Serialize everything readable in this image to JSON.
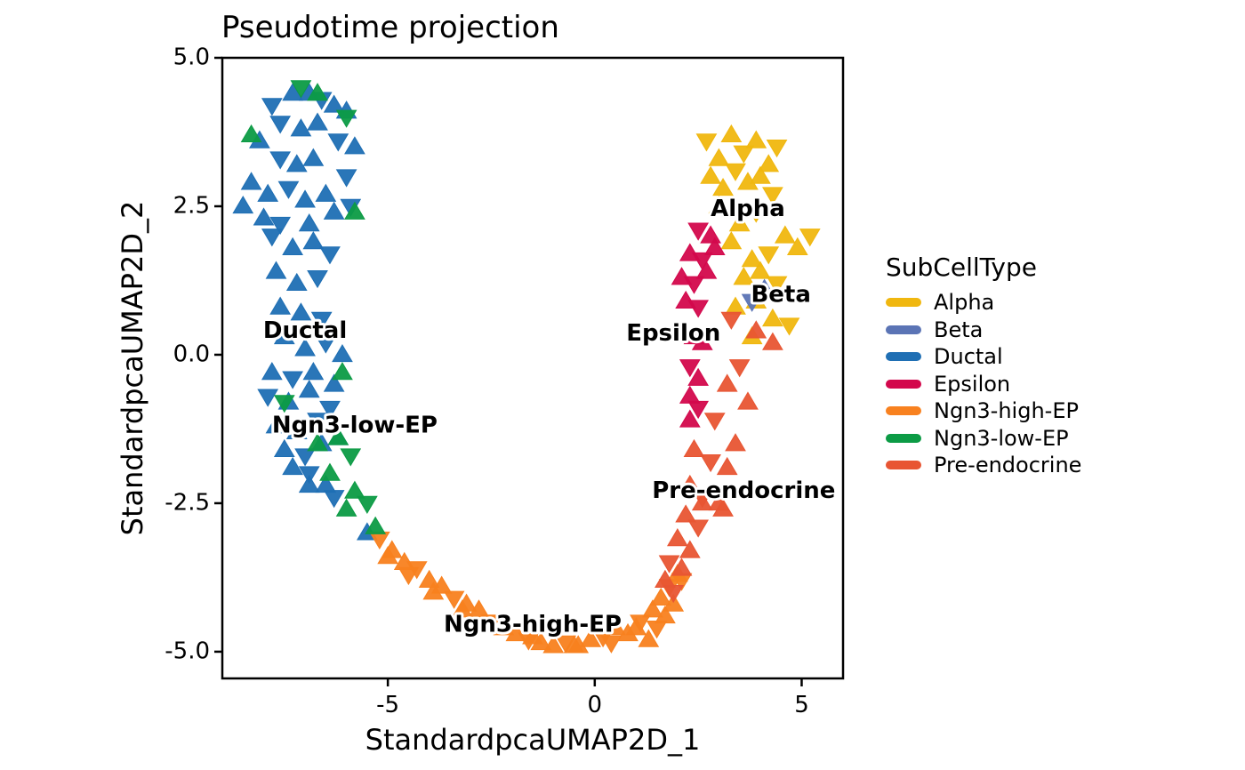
{
  "chart_data": {
    "type": "scatter",
    "title": "Pseudotime projection",
    "xlabel": "StandardpcaUMAP2D_1",
    "ylabel": "StandardpcaUMAP2D_2",
    "xlim": [
      -9.0,
      6.0
    ],
    "ylim": [
      -5.45,
      5.0
    ],
    "x_ticks": [
      -5,
      0,
      5
    ],
    "x_tick_labels": [
      "-5",
      "0",
      "5"
    ],
    "y_ticks": [
      5.0,
      2.5,
      0.0,
      -2.5,
      -5.0
    ],
    "y_tick_labels": [
      "5.0",
      "2.5",
      "0.0",
      "-2.5",
      "-5.0"
    ],
    "grid": false,
    "legend_position": "right",
    "legend_title": "SubCellType",
    "marker": "triangle",
    "series": [
      {
        "name": "Alpha",
        "color": "#F0B70F",
        "label": "Alpha",
        "label_at": [
          3.7,
          2.45
        ],
        "x": [
          2.7,
          3.0,
          3.3,
          3.6,
          3.9,
          4.2,
          4.4,
          2.8,
          3.1,
          3.4,
          3.7,
          4.0,
          4.3,
          3.0,
          3.5,
          3.9,
          4.6,
          4.9,
          5.2,
          3.3,
          3.8,
          4.2,
          3.6,
          4.0,
          4.4,
          3.9,
          4.3,
          4.7,
          3.4,
          3.8
        ],
        "y": [
          3.6,
          3.3,
          3.7,
          3.4,
          3.6,
          3.2,
          3.5,
          3.0,
          2.8,
          3.1,
          2.9,
          3.0,
          2.7,
          2.5,
          2.2,
          2.4,
          2.0,
          1.8,
          2.0,
          1.9,
          1.6,
          1.7,
          1.3,
          1.4,
          1.2,
          0.9,
          0.6,
          0.5,
          0.8,
          0.3
        ]
      },
      {
        "name": "Beta",
        "color": "#5B74B5",
        "label": "Beta",
        "label_at": [
          4.5,
          1.0
        ],
        "x": [
          3.8,
          4.1
        ],
        "y": [
          0.9,
          1.1
        ]
      },
      {
        "name": "Ductal",
        "color": "#1F6FB4",
        "label": "Ductal",
        "label_at": [
          -7.0,
          0.4
        ],
        "x": [
          -7.8,
          -7.3,
          -6.9,
          -6.6,
          -6.3,
          -6.0,
          -7.6,
          -7.1,
          -6.7,
          -6.2,
          -5.8,
          -8.1,
          -7.6,
          -7.2,
          -6.8,
          -6.0,
          -8.3,
          -7.9,
          -7.4,
          -7.0,
          -6.5,
          -5.9,
          -8.5,
          -8.0,
          -7.6,
          -6.9,
          -6.3,
          -7.8,
          -7.3,
          -6.8,
          -6.4,
          -7.7,
          -7.2,
          -6.7,
          -7.6,
          -7.1,
          -6.6,
          -7.5,
          -7.0,
          -6.5,
          -6.1,
          -7.8,
          -7.3,
          -6.8,
          -6.3,
          -7.9,
          -7.4,
          -6.9,
          -6.4,
          -7.7,
          -7.2,
          -6.7,
          -6.2,
          -7.5,
          -7.0,
          -6.6,
          -7.3,
          -6.9,
          -6.5,
          -6.9,
          -6.3,
          -5.5
        ],
        "y": [
          4.2,
          4.4,
          4.4,
          4.3,
          4.2,
          4.1,
          3.9,
          3.8,
          3.9,
          3.6,
          3.5,
          3.6,
          3.3,
          3.2,
          3.3,
          3.0,
          2.9,
          2.7,
          2.8,
          2.6,
          2.7,
          2.5,
          2.5,
          2.3,
          2.2,
          2.2,
          2.4,
          2.0,
          1.8,
          1.9,
          1.7,
          1.4,
          1.2,
          1.3,
          0.8,
          0.7,
          0.6,
          0.3,
          0.1,
          0.2,
          0.0,
          -0.3,
          -0.4,
          -0.3,
          -0.5,
          -0.7,
          -0.8,
          -0.6,
          -0.9,
          -1.2,
          -1.3,
          -1.1,
          -1.4,
          -1.6,
          -1.7,
          -1.5,
          -1.9,
          -2.0,
          -2.2,
          -2.2,
          -2.4,
          -3.0
        ]
      },
      {
        "name": "Epsilon",
        "color": "#D3084C",
        "label": "Epsilon",
        "label_at": [
          1.9,
          0.35
        ],
        "x": [
          2.5,
          2.8,
          2.3,
          2.6,
          2.9,
          2.1,
          2.4,
          2.7,
          2.2,
          2.5,
          2.4,
          2.6,
          2.3,
          2.5,
          2.3,
          2.5,
          2.3
        ],
        "y": [
          2.1,
          2.0,
          1.7,
          1.6,
          1.8,
          1.3,
          1.2,
          1.4,
          0.9,
          0.8,
          0.3,
          0.2,
          -0.2,
          -0.4,
          -0.7,
          -0.9,
          -1.1
        ]
      },
      {
        "name": "Ngn3-high-EP",
        "color": "#F8811F",
        "label": "Ngn3-high-EP",
        "label_at": [
          -1.5,
          -4.55
        ],
        "x": [
          -5.2,
          -4.9,
          -4.6,
          -4.3,
          -4.0,
          -3.7,
          -3.4,
          -3.1,
          -2.8,
          -2.5,
          -2.2,
          -1.9,
          -1.6,
          -1.3,
          -1.0,
          -0.7,
          -0.4,
          -0.1,
          0.2,
          0.5,
          0.8,
          1.1,
          1.4,
          1.6,
          1.8,
          2.0,
          1.3,
          1.5,
          1.7,
          -5.0,
          -4.5,
          -3.9,
          -3.2,
          -2.5,
          -1.5,
          -0.5,
          0.4,
          1.0,
          1.9,
          2.1
        ],
        "y": [
          -3.1,
          -3.3,
          -3.5,
          -3.6,
          -3.8,
          -3.9,
          -4.1,
          -4.2,
          -4.3,
          -4.5,
          -4.6,
          -4.7,
          -4.8,
          -4.85,
          -4.9,
          -4.85,
          -4.9,
          -4.8,
          -4.75,
          -4.6,
          -4.7,
          -4.5,
          -4.3,
          -4.1,
          -3.9,
          -3.7,
          -4.8,
          -4.6,
          -4.4,
          -3.4,
          -3.7,
          -4.0,
          -4.3,
          -4.5,
          -4.75,
          -4.9,
          -4.85,
          -4.6,
          -4.2,
          -3.8
        ]
      },
      {
        "name": "Ngn3-low-EP",
        "color": "#0C9B45",
        "label": "Ngn3-low-EP",
        "label_at": [
          -5.8,
          -1.2
        ],
        "x": [
          -7.1,
          -6.7,
          -8.3,
          -6.0,
          -5.8,
          -6.1,
          -7.5,
          -6.2,
          -6.7,
          -5.9,
          -6.4,
          -5.8,
          -5.5,
          -6.0,
          -5.3
        ],
        "y": [
          4.5,
          4.4,
          3.7,
          4.0,
          2.4,
          -0.3,
          -0.8,
          -1.4,
          -1.5,
          -1.7,
          -2.0,
          -2.3,
          -2.5,
          -2.6,
          -2.9
        ]
      },
      {
        "name": "Pre-endocrine",
        "color": "#E85533",
        "label": "Pre-endocrine",
        "label_at": [
          3.6,
          -2.3
        ],
        "x": [
          3.3,
          3.9,
          4.3,
          3.5,
          3.2,
          3.7,
          2.9,
          3.4,
          2.4,
          2.8,
          3.2,
          2.3,
          2.6,
          3.0,
          2.2,
          2.5,
          2.0,
          2.3,
          1.8,
          2.1,
          1.7,
          1.9,
          2.6,
          3.1
        ],
        "y": [
          0.6,
          0.4,
          0.2,
          -0.2,
          -0.5,
          -0.8,
          -1.1,
          -1.5,
          -1.6,
          -1.8,
          -1.9,
          -2.2,
          -2.4,
          -2.5,
          -2.7,
          -2.9,
          -3.1,
          -3.3,
          -3.5,
          -3.6,
          -3.8,
          -4.0,
          -2.5,
          -2.6
        ]
      }
    ]
  }
}
